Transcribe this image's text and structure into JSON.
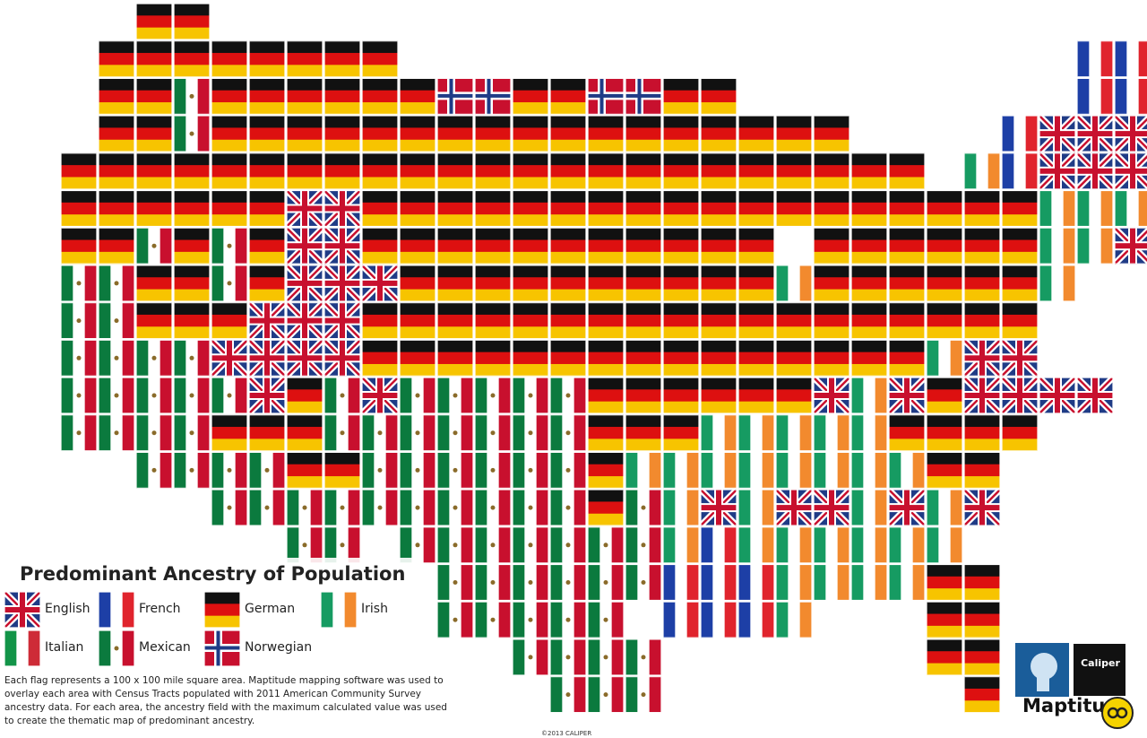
{
  "title": "Predominant Ancestry of Population",
  "legend": [
    "English",
    "French",
    "German",
    "Irish",
    "Italian",
    "Mexican",
    "Norwegian"
  ],
  "description": "Each flag represents a 100 x 100 mile square area. Maptitude mapping software was used to overlay each area with Census Tracts populated with 2011 American Community Survey ancestry data. For each area, the ancestry field with the maximum calculated value was used to create the thematic map of predominant ancestry.",
  "logo": {
    "brand": "Caliper",
    "product": "Maptitude"
  },
  "copyright": "©2013 CALIPER",
  "map": {
    "grid": [
      [
        null,
        null,
        2,
        2,
        null,
        null,
        null,
        null,
        null,
        null,
        null,
        null,
        null,
        null,
        null,
        null,
        null,
        null,
        null,
        null,
        null,
        null,
        null,
        null,
        null,
        null,
        null,
        null,
        null
      ],
      [
        null,
        2,
        2,
        2,
        2,
        2,
        2,
        2,
        2,
        null,
        null,
        null,
        null,
        null,
        null,
        null,
        null,
        null,
        null,
        null,
        null,
        null,
        null,
        null,
        null,
        null,
        null,
        1,
        1
      ],
      [
        null,
        2,
        2,
        5,
        2,
        2,
        2,
        2,
        2,
        2,
        6,
        6,
        2,
        2,
        6,
        6,
        2,
        2,
        null,
        null,
        null,
        null,
        null,
        null,
        null,
        null,
        null,
        1,
        1
      ],
      [
        null,
        2,
        2,
        5,
        2,
        2,
        2,
        2,
        2,
        2,
        2,
        2,
        2,
        2,
        2,
        2,
        2,
        2,
        2,
        2,
        2,
        null,
        null,
        null,
        null,
        1,
        0,
        0,
        0
      ],
      [
        2,
        2,
        2,
        2,
        2,
        2,
        2,
        2,
        2,
        2,
        2,
        2,
        2,
        2,
        2,
        2,
        2,
        2,
        2,
        2,
        2,
        2,
        2,
        null,
        3,
        1,
        0,
        0,
        0
      ],
      [
        2,
        2,
        2,
        2,
        2,
        2,
        0,
        0,
        2,
        2,
        2,
        2,
        2,
        2,
        2,
        2,
        2,
        2,
        2,
        2,
        2,
        2,
        2,
        2,
        2,
        2,
        3,
        3,
        3
      ],
      [
        2,
        2,
        5,
        2,
        5,
        2,
        0,
        0,
        2,
        2,
        2,
        2,
        2,
        2,
        2,
        2,
        2,
        2,
        2,
        null,
        2,
        2,
        2,
        2,
        2,
        2,
        3,
        3,
        0
      ],
      [
        5,
        5,
        2,
        2,
        5,
        2,
        0,
        0,
        0,
        2,
        2,
        2,
        2,
        2,
        2,
        2,
        2,
        2,
        2,
        3,
        2,
        2,
        2,
        2,
        2,
        2,
        3,
        null,
        null
      ],
      [
        5,
        5,
        2,
        2,
        2,
        0,
        0,
        0,
        2,
        2,
        2,
        2,
        2,
        2,
        2,
        2,
        2,
        2,
        2,
        2,
        2,
        2,
        2,
        2,
        2,
        2,
        null,
        null,
        null
      ],
      [
        5,
        5,
        5,
        5,
        0,
        0,
        0,
        0,
        2,
        2,
        2,
        2,
        2,
        2,
        2,
        2,
        2,
        2,
        2,
        2,
        2,
        2,
        2,
        3,
        0,
        0,
        null,
        null,
        null
      ],
      [
        5,
        5,
        5,
        5,
        5,
        0,
        2,
        5,
        0,
        5,
        5,
        5,
        5,
        5,
        2,
        2,
        2,
        2,
        2,
        2,
        0,
        3,
        0,
        2,
        0,
        0,
        0,
        0,
        null
      ],
      [
        5,
        5,
        5,
        5,
        2,
        2,
        2,
        5,
        5,
        5,
        5,
        5,
        5,
        5,
        2,
        2,
        2,
        3,
        3,
        3,
        3,
        3,
        2,
        2,
        2,
        2,
        null,
        null,
        null
      ],
      [
        null,
        null,
        5,
        5,
        5,
        5,
        2,
        2,
        5,
        5,
        5,
        5,
        5,
        5,
        2,
        3,
        3,
        3,
        3,
        3,
        3,
        3,
        3,
        2,
        2,
        null,
        null,
        null,
        null
      ],
      [
        null,
        null,
        null,
        null,
        5,
        5,
        5,
        5,
        5,
        5,
        5,
        5,
        5,
        5,
        2,
        5,
        3,
        0,
        3,
        0,
        0,
        3,
        0,
        3,
        0,
        null,
        null,
        null,
        null
      ],
      [
        null,
        null,
        null,
        null,
        null,
        null,
        5,
        5,
        null,
        5,
        5,
        5,
        5,
        5,
        5,
        5,
        3,
        1,
        3,
        3,
        3,
        3,
        3,
        3,
        null,
        null,
        null,
        null,
        null
      ],
      [
        null,
        null,
        null,
        null,
        null,
        null,
        null,
        null,
        null,
        null,
        5,
        5,
        5,
        5,
        5,
        5,
        1,
        1,
        1,
        3,
        3,
        3,
        3,
        2,
        2,
        null,
        null,
        null,
        null
      ],
      [
        null,
        null,
        null,
        null,
        null,
        null,
        null,
        null,
        null,
        null,
        5,
        5,
        5,
        5,
        5,
        null,
        1,
        1,
        1,
        3,
        null,
        null,
        null,
        2,
        2,
        null,
        null,
        null,
        null
      ],
      [
        null,
        null,
        null,
        null,
        null,
        null,
        null,
        null,
        null,
        null,
        null,
        null,
        5,
        5,
        5,
        5,
        null,
        null,
        null,
        null,
        null,
        null,
        null,
        2,
        2,
        null,
        null,
        null,
        null
      ],
      [
        null,
        null,
        null,
        null,
        null,
        null,
        null,
        null,
        null,
        null,
        null,
        null,
        null,
        5,
        5,
        5,
        null,
        null,
        null,
        null,
        null,
        null,
        null,
        null,
        2,
        null,
        null,
        null,
        null
      ]
    ]
  }
}
